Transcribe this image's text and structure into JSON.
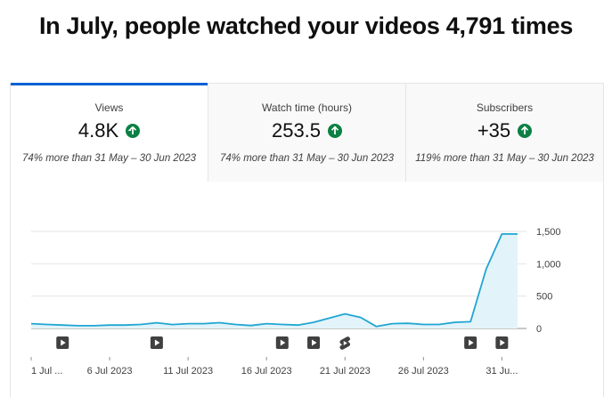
{
  "headline": "In July, people watched your videos 4,791 times",
  "tabs": [
    {
      "label": "Views",
      "value": "4.8K",
      "comparison": "74% more than 31 May – 30 Jun 2023",
      "trend_icon": "arrow-up-circle-icon",
      "active": true
    },
    {
      "label": "Watch time (hours)",
      "value": "253.5",
      "comparison": "74% more than 31 May – 30 Jun 2023",
      "trend_icon": "arrow-up-circle-icon",
      "active": false
    },
    {
      "label": "Subscribers",
      "value": "+35",
      "comparison": "119% more than 31 May – 30 Jun 2023",
      "trend_icon": "arrow-up-circle-icon",
      "active": false
    }
  ],
  "colors": {
    "accent": "#065fd4",
    "line": "#20a6d1",
    "fill": "#e3f3fa",
    "trend_up": "#0b8043"
  },
  "chart_data": {
    "type": "area",
    "title": "",
    "ylabel": "",
    "xlabel": "",
    "ylim": [
      0,
      1500
    ],
    "y_ticks": [
      "0",
      "500",
      "1,000",
      "1,500"
    ],
    "y_tick_values": [
      0,
      500,
      1000,
      1500
    ],
    "x_tick_labels": [
      "1 Jul ...",
      "6 Jul 2023",
      "11 Jul 2023",
      "16 Jul 2023",
      "21 Jul 2023",
      "26 Jul 2023",
      "31 Ju..."
    ],
    "x_tick_days": [
      1,
      6,
      11,
      16,
      21,
      26,
      31
    ],
    "x": [
      1,
      2,
      3,
      4,
      5,
      6,
      7,
      8,
      9,
      10,
      11,
      12,
      13,
      14,
      15,
      16,
      17,
      18,
      19,
      20,
      21,
      22,
      23,
      24,
      25,
      26,
      27,
      28,
      29,
      30,
      31,
      32
    ],
    "series": [
      {
        "values": [
          75,
          62,
          52,
          42,
          42,
          52,
          52,
          62,
          88,
          60,
          75,
          75,
          90,
          62,
          45,
          75,
          62,
          52,
          95,
          160,
          225,
          170,
          30,
          75,
          80,
          62,
          62,
          95,
          105,
          920,
          1460,
          1460
        ]
      }
    ],
    "markers": [
      {
        "day": 3,
        "icon": "video-upload-icon"
      },
      {
        "day": 9,
        "icon": "video-upload-icon"
      },
      {
        "day": 17,
        "icon": "video-upload-icon"
      },
      {
        "day": 19,
        "icon": "video-upload-icon"
      },
      {
        "day": 21,
        "icon": "shorts-upload-icon"
      },
      {
        "day": 29,
        "icon": "video-upload-icon"
      },
      {
        "day": 31,
        "icon": "video-upload-icon"
      }
    ]
  }
}
